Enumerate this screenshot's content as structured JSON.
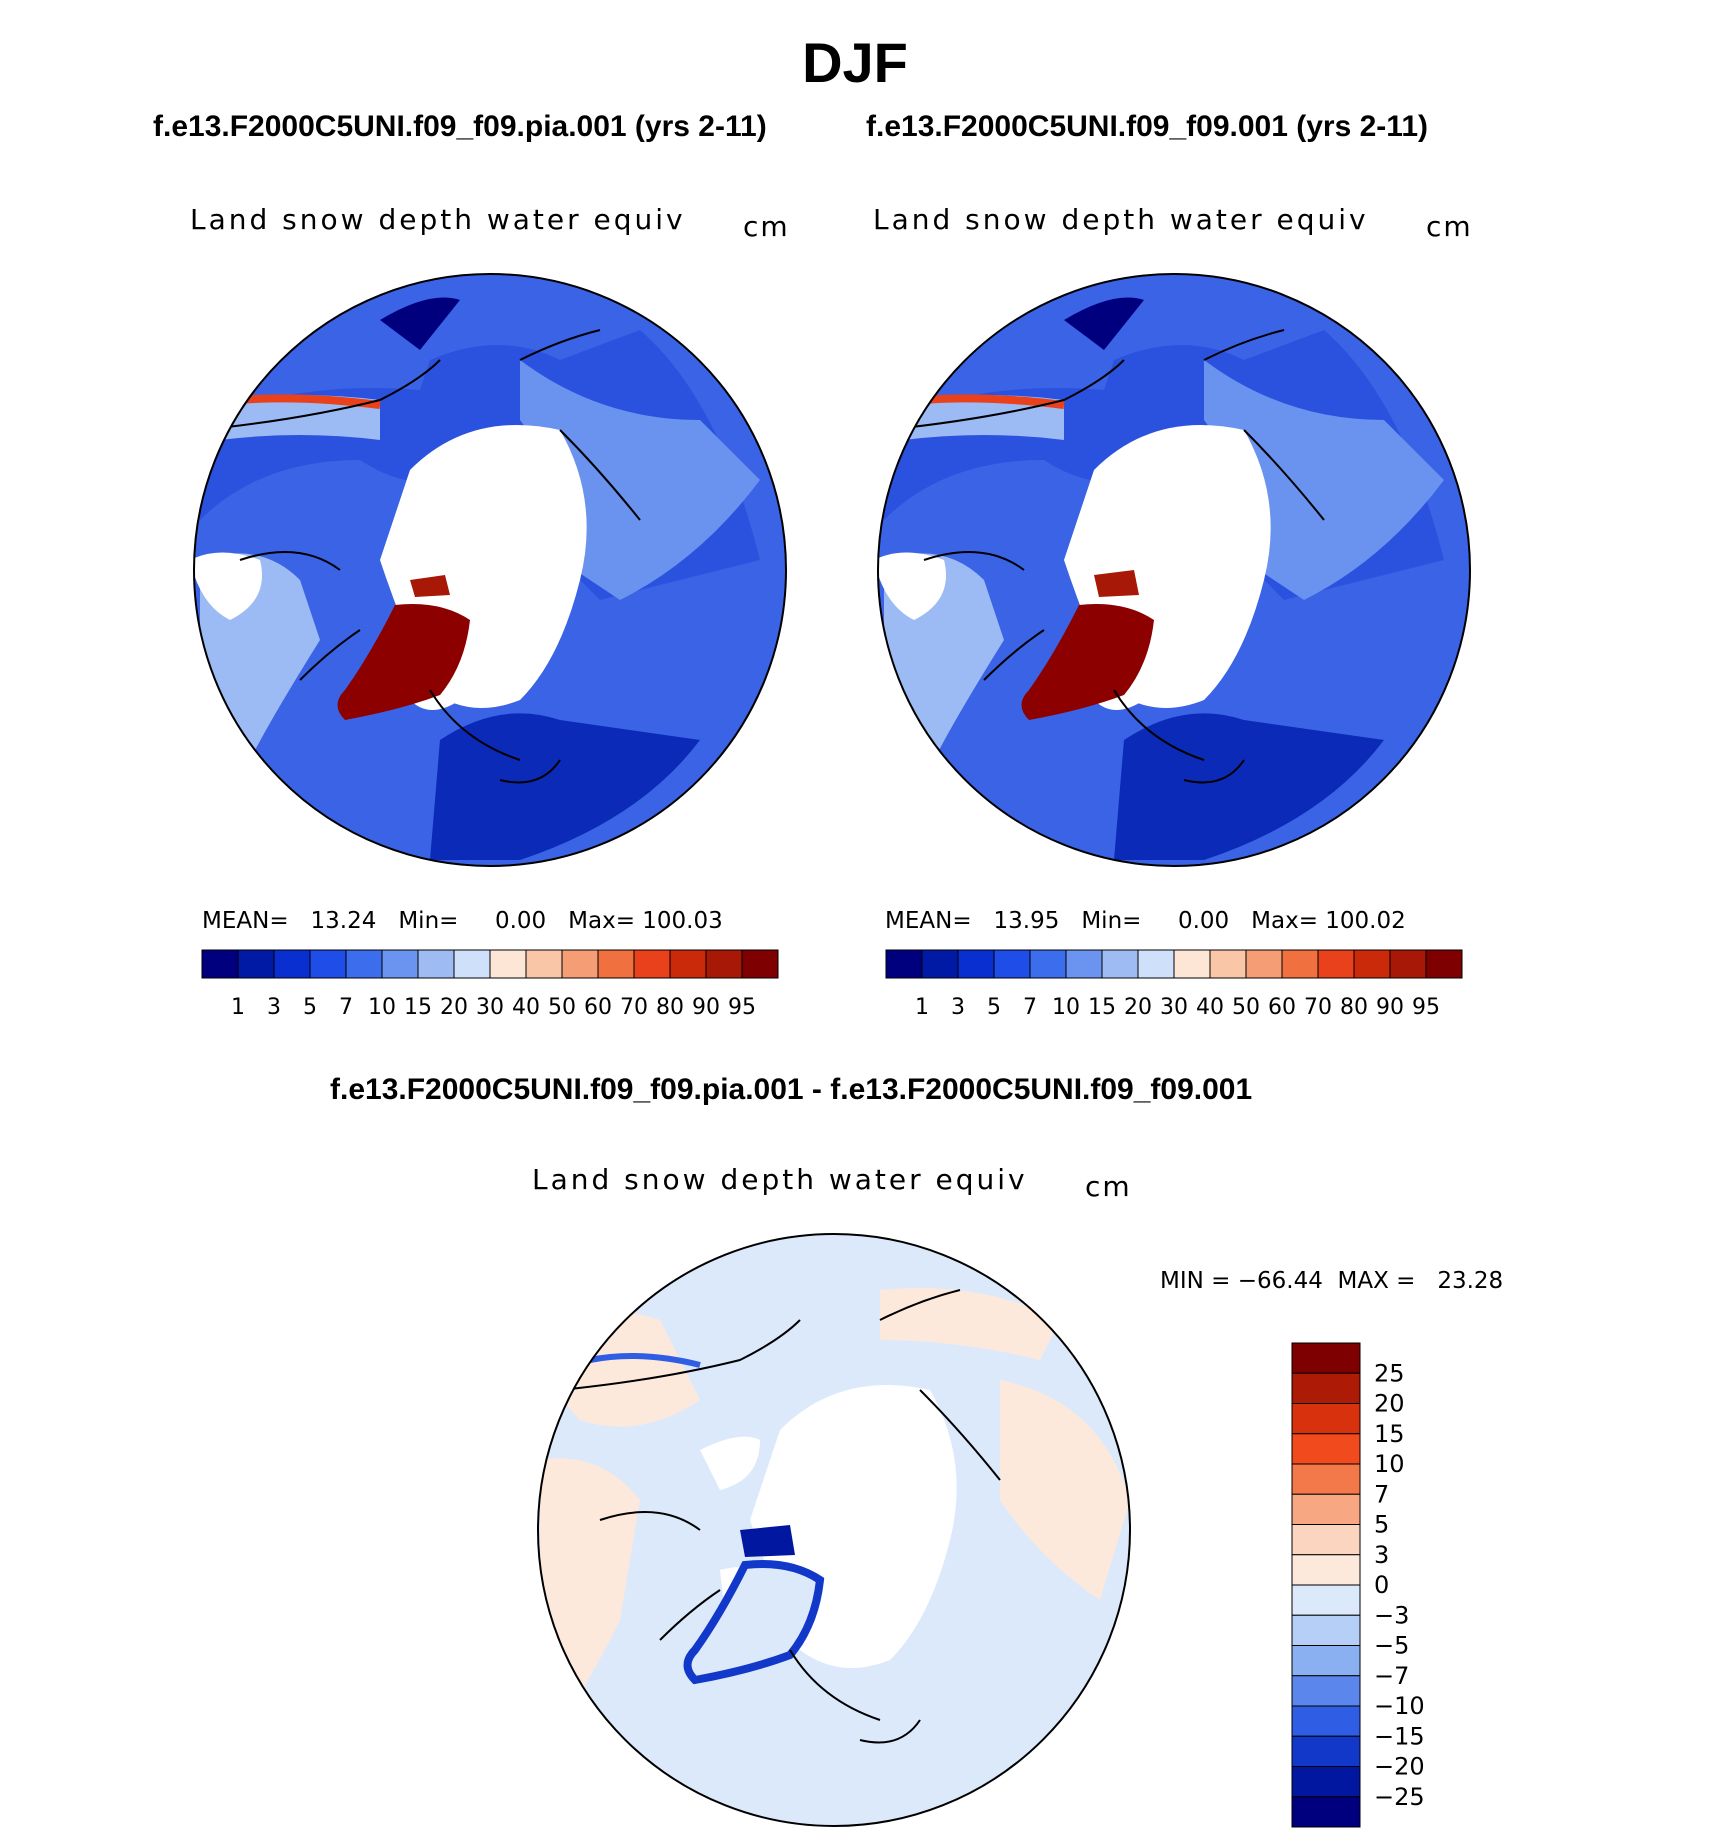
{
  "figure_title": "DJF",
  "panels": [
    {
      "case_title": "f.e13.F2000C5UNI.f09_f09.pia.001 (yrs 2-11)",
      "field_label": "Land snow depth water equiv",
      "units": "cm",
      "stats": {
        "mean_label": "MEAN=",
        "mean": "13.24",
        "min_label": "Min=",
        "min": "0.00",
        "max_label": "Max=",
        "max": "100.03"
      }
    },
    {
      "case_title": "f.e13.F2000C5UNI.f09_f09.001 (yrs 2-11)",
      "field_label": "Land snow depth water equiv",
      "units": "cm",
      "stats": {
        "mean_label": "MEAN=",
        "mean": "13.95",
        "min_label": "Min=",
        "min": "0.00",
        "max_label": "Max=",
        "max": "100.02"
      }
    }
  ],
  "diff_panel": {
    "case_title": "f.e13.F2000C5UNI.f09_f09.pia.001 - f.e13.F2000C5UNI.f09_f09.001",
    "field_label": "Land snow depth water equiv",
    "units": "cm",
    "stats": {
      "min_label": "MIN =",
      "min": "−66.44",
      "max_label": "MAX =",
      "max": "23.28"
    }
  },
  "chart_data": [
    {
      "type": "heatmap",
      "projection": "north polar stereographic",
      "field": "Land snow depth water equiv",
      "units": "cm",
      "summary": {
        "mean": 13.24,
        "min": 0.0,
        "max": 100.03
      },
      "colorbar": {
        "orientation": "horizontal",
        "levels": [
          "1",
          "3",
          "5",
          "7",
          "10",
          "15",
          "20",
          "30",
          "40",
          "50",
          "60",
          "70",
          "80",
          "90",
          "95"
        ],
        "colors": [
          "#00007f",
          "#001aa6",
          "#0a2fd0",
          "#1f4de8",
          "#3b6ded",
          "#6b93f0",
          "#9fbbf3",
          "#cfe0fa",
          "#fde6d5",
          "#f9c6a7",
          "#f59d75",
          "#f1703f",
          "#e8411b",
          "#cb2a0a",
          "#a81806",
          "#7e0000"
        ]
      }
    },
    {
      "type": "heatmap",
      "projection": "north polar stereographic",
      "field": "Land snow depth water equiv",
      "units": "cm",
      "summary": {
        "mean": 13.95,
        "min": 0.0,
        "max": 100.02
      },
      "colorbar": {
        "orientation": "horizontal",
        "levels": [
          "1",
          "3",
          "5",
          "7",
          "10",
          "15",
          "20",
          "30",
          "40",
          "50",
          "60",
          "70",
          "80",
          "90",
          "95"
        ],
        "colors": [
          "#00007f",
          "#001aa6",
          "#0a2fd0",
          "#1f4de8",
          "#3b6ded",
          "#6b93f0",
          "#9fbbf3",
          "#cfe0fa",
          "#fde6d5",
          "#f9c6a7",
          "#f59d75",
          "#f1703f",
          "#e8411b",
          "#cb2a0a",
          "#a81806",
          "#7e0000"
        ]
      }
    },
    {
      "type": "heatmap",
      "projection": "north polar stereographic",
      "field": "Land snow depth water equiv (difference)",
      "units": "cm",
      "summary": {
        "min": -66.44,
        "max": 23.28
      },
      "colorbar": {
        "orientation": "vertical",
        "levels": [
          "25",
          "20",
          "15",
          "10",
          "7",
          "5",
          "3",
          "0",
          "−3",
          "−5",
          "−7",
          "−10",
          "−15",
          "−20",
          "−25"
        ],
        "colors": [
          "#7e0000",
          "#ad1a06",
          "#d8310d",
          "#f04a1d",
          "#f4794a",
          "#f7a882",
          "#fbd5bf",
          "#fde9dc",
          "#dce9fb",
          "#b6cff7",
          "#8bb0f2",
          "#5b87ec",
          "#2f5ee4",
          "#1238c9",
          "#0217a0",
          "#00007f"
        ]
      }
    }
  ]
}
